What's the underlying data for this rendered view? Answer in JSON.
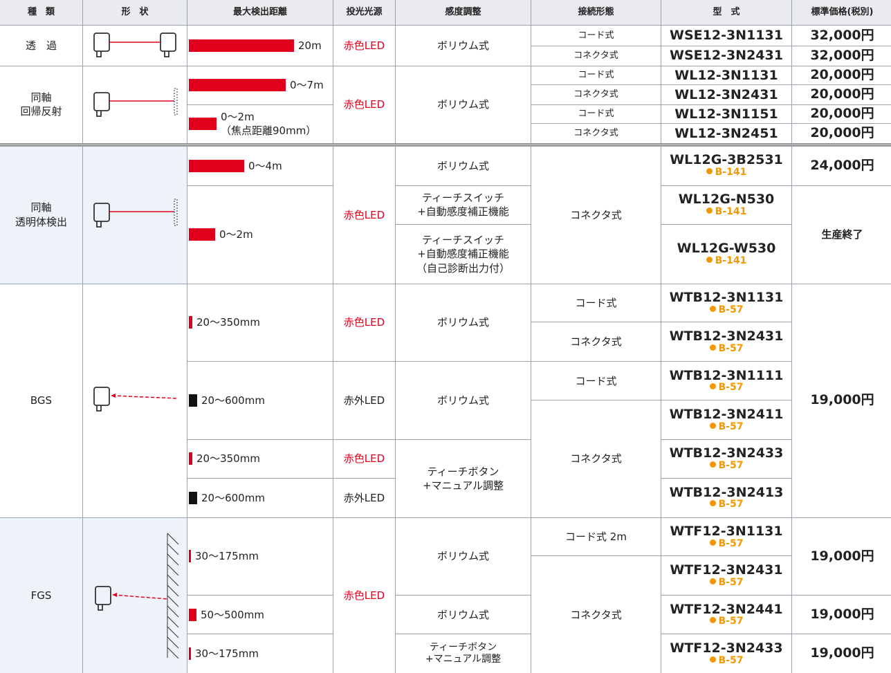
{
  "header": [
    "種　類",
    "形　状",
    "最大検出距離",
    "投光光源",
    "感度調整",
    "接続形態",
    "型　式",
    "標準価格(税別)"
  ],
  "groups": [
    {
      "type": [
        "透　過"
      ],
      "distance": [
        [
          "20m"
        ]
      ],
      "source": [
        "赤色LED"
      ],
      "adjust": [
        [
          "ボリウム式"
        ]
      ],
      "connection": [
        "コード式",
        "コネクタ式"
      ],
      "models": [
        {
          "name": "WSE12-3N1131"
        },
        {
          "name": "WSE12-3N2431"
        }
      ],
      "prices": [
        "32,000円",
        "32,000円"
      ]
    },
    {
      "type": [
        "同軸",
        "回帰反射"
      ],
      "distance": [
        [
          "0〜7m"
        ],
        [
          "0〜2m",
          "（焦点距離90mm）"
        ]
      ],
      "source": [
        "赤色LED"
      ],
      "adjust": [
        [
          "ボリウム式"
        ]
      ],
      "connection": [
        "コード式",
        "コネクタ式",
        "コード式",
        "コネクタ式"
      ],
      "models": [
        {
          "name": "WL12-3N1131"
        },
        {
          "name": "WL12-3N2431"
        },
        {
          "name": "WL12-3N1151"
        },
        {
          "name": "WL12-3N2451"
        }
      ],
      "prices": [
        "20,000円",
        "20,000円",
        "20,000円",
        "20,000円"
      ]
    },
    {
      "type": [
        "同軸",
        "透明体検出"
      ],
      "distance": [
        [
          "0〜4m"
        ],
        [
          "0〜2m"
        ]
      ],
      "source": [
        "赤色LED"
      ],
      "adjust": [
        [
          "ボリウム式"
        ],
        [
          "ティーチスイッチ",
          "+自動感度補正機能"
        ],
        [
          "ティーチスイッチ",
          "+自動感度補正機能",
          "（自己診断出力付）"
        ]
      ],
      "connection": [
        "コネクタ式"
      ],
      "models": [
        {
          "name": "WL12G-3B2531",
          "ref": "B-141"
        },
        {
          "name": "WL12G-N530",
          "ref": "B-141"
        },
        {
          "name": "WL12G-W530",
          "ref": "B-141"
        }
      ],
      "prices": [
        "24,000円",
        "生産終了"
      ]
    },
    {
      "type": [
        "BGS"
      ],
      "distance": [
        [
          "20〜350mm"
        ],
        [
          "20〜600mm"
        ],
        [
          "20〜350mm"
        ],
        [
          "20〜600mm"
        ]
      ],
      "source": [
        "赤色LED",
        "赤外LED",
        "赤色LED",
        "赤外LED"
      ],
      "adjust": [
        [
          "ボリウム式"
        ],
        [
          "ボリウム式"
        ],
        [
          "ティーチボタン",
          "+マニュアル調整"
        ]
      ],
      "connection": [
        "コード式",
        "コネクタ式",
        "コード式",
        "コネクタ式"
      ],
      "models": [
        {
          "name": "WTB12-3N1131",
          "ref": "B-57"
        },
        {
          "name": "WTB12-3N2431",
          "ref": "B-57"
        },
        {
          "name": "WTB12-3N1111",
          "ref": "B-57"
        },
        {
          "name": "WTB12-3N2411",
          "ref": "B-57"
        },
        {
          "name": "WTB12-3N2433",
          "ref": "B-57"
        },
        {
          "name": "WTB12-3N2413",
          "ref": "B-57"
        }
      ],
      "prices": [
        "19,000円"
      ]
    },
    {
      "type": [
        "FGS"
      ],
      "distance": [
        [
          "30〜175mm"
        ],
        [
          "50〜500mm"
        ],
        [
          "30〜175mm"
        ]
      ],
      "source": [
        "赤色LED"
      ],
      "adjust": [
        [
          "ボリウム式"
        ],
        [
          "ボリウム式"
        ],
        [
          "ティーチボタン",
          "+マニュアル調整"
        ]
      ],
      "connection": [
        "コード式 2m",
        "コネクタ式"
      ],
      "models": [
        {
          "name": "WTF12-3N1131",
          "ref": "B-57"
        },
        {
          "name": "WTF12-3N2431",
          "ref": "B-57"
        },
        {
          "name": "WTF12-3N2441",
          "ref": "B-57"
        },
        {
          "name": "WTF12-3N2433",
          "ref": "B-57"
        }
      ],
      "prices": [
        "19,000円",
        "19,000円",
        "19,000円"
      ]
    }
  ]
}
